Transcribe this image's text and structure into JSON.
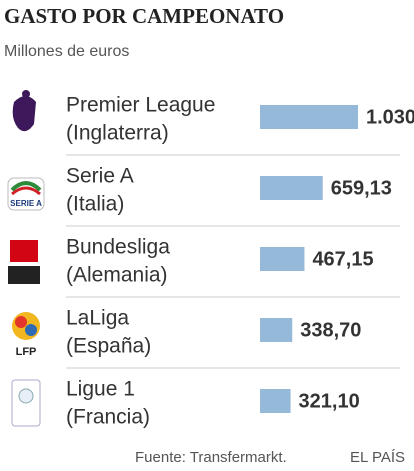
{
  "chart_data": {
    "type": "bar",
    "orientation": "horizontal",
    "title": "GASTO POR CAMPEONATO",
    "subtitle": "Millones de euros",
    "categories": [
      [
        "Premier League",
        "(Inglaterra)"
      ],
      [
        "Serie A",
        "(Italia)"
      ],
      [
        "Bundesliga",
        "(Alemania)"
      ],
      [
        "LaLiga",
        "(España)"
      ],
      [
        "Ligue 1",
        "(Francia)"
      ]
    ],
    "values": [
      1030,
      659.13,
      467.15,
      338.7,
      321.1
    ],
    "value_labels": [
      "1.030",
      "659,13",
      "467,15",
      "338,70",
      "321,10"
    ],
    "color": "#94b9d9",
    "source": "Fuente: Transfermarkt.",
    "credit": "EL PAÍS"
  }
}
